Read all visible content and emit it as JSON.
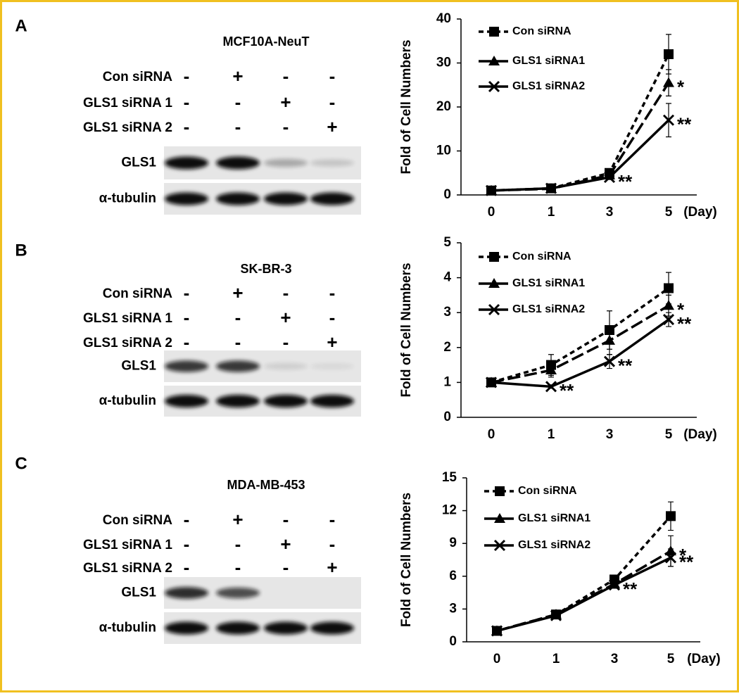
{
  "blots": [
    {
      "panel": "A",
      "title": "MCF10A-NeuT",
      "rows": [
        {
          "label": "Con siRNA",
          "marks": [
            "-",
            "+",
            "-",
            "-"
          ]
        },
        {
          "label": "GLS1 siRNA 1",
          "marks": [
            "-",
            "-",
            "+",
            "-"
          ]
        },
        {
          "label": "GLS1 siRNA 2",
          "marks": [
            "-",
            "-",
            "-",
            "+"
          ]
        }
      ],
      "bands": [
        "GLS1",
        "α-tubulin"
      ]
    },
    {
      "panel": "B",
      "title": "SK-BR-3",
      "rows": [
        {
          "label": "Con siRNA",
          "marks": [
            "-",
            "+",
            "-",
            "-"
          ]
        },
        {
          "label": "GLS1 siRNA 1",
          "marks": [
            "-",
            "-",
            "+",
            "-"
          ]
        },
        {
          "label": "GLS1 siRNA 2",
          "marks": [
            "-",
            "-",
            "-",
            "+"
          ]
        }
      ],
      "bands": [
        "GLS1",
        "α-tubulin"
      ]
    },
    {
      "panel": "C",
      "title": "MDA-MB-453",
      "rows": [
        {
          "label": "Con siRNA",
          "marks": [
            "-",
            "+",
            "-",
            "-"
          ]
        },
        {
          "label": "GLS1 siRNA 1",
          "marks": [
            "-",
            "-",
            "+",
            "-"
          ]
        },
        {
          "label": "GLS1 siRNA 2",
          "marks": [
            "-",
            "-",
            "-",
            "+"
          ]
        }
      ],
      "bands": [
        "GLS1",
        "α-tubulin"
      ]
    }
  ],
  "chart_data": [
    {
      "type": "line",
      "ylabel": "Fold of Cell Numbers",
      "xlabel": "(Day)",
      "categories": [
        "0",
        "1",
        "3",
        "5"
      ],
      "ylim": [
        0,
        40
      ],
      "yticks": [
        0,
        10,
        20,
        30,
        40
      ],
      "series": [
        {
          "name": "Con siRNA",
          "color": "#000000",
          "dash": "short",
          "marker": "square",
          "values": [
            1,
            1.5,
            5,
            32
          ],
          "errors": [
            0.3,
            0.3,
            0.8,
            4.5
          ]
        },
        {
          "name": "GLS1 siRNA1",
          "color": "#000000",
          "dash": "long",
          "marker": "triangle",
          "values": [
            1,
            1.4,
            4.5,
            25.5
          ],
          "errors": [
            0.3,
            0.3,
            0.6,
            3
          ]
        },
        {
          "name": "GLS1 siRNA2",
          "color": "#000000",
          "dash": "solid",
          "marker": "x",
          "values": [
            1,
            1.5,
            4,
            17
          ],
          "errors": [
            0.3,
            0.2,
            0.5,
            3.8
          ]
        }
      ],
      "annotations": [
        "*",
        "**",
        "**"
      ]
    },
    {
      "type": "line",
      "ylabel": "Fold of Cell Numbers",
      "xlabel": "(Day)",
      "categories": [
        "0",
        "1",
        "3",
        "5"
      ],
      "ylim": [
        0,
        5
      ],
      "yticks": [
        0,
        1,
        2,
        3,
        4,
        5
      ],
      "series": [
        {
          "name": "Con siRNA",
          "color": "#000000",
          "dash": "short",
          "marker": "square",
          "values": [
            1,
            1.5,
            2.5,
            3.7
          ],
          "errors": [
            0.1,
            0.3,
            0.55,
            0.45
          ]
        },
        {
          "name": "GLS1 siRNA1",
          "color": "#000000",
          "dash": "long",
          "marker": "triangle",
          "values": [
            1,
            1.35,
            2.2,
            3.2
          ],
          "errors": [
            0.1,
            0.2,
            0.4,
            0.3
          ]
        },
        {
          "name": "GLS1 siRNA2",
          "color": "#000000",
          "dash": "solid",
          "marker": "x",
          "values": [
            1,
            0.88,
            1.6,
            2.8
          ],
          "errors": [
            0.1,
            0.05,
            0.2,
            0.2
          ]
        }
      ],
      "annotations": [
        "*",
        "**",
        "**",
        "**"
      ]
    },
    {
      "type": "line",
      "ylabel": "Fold of Cell Numbers",
      "xlabel": "(Day)",
      "categories": [
        "0",
        "1",
        "3",
        "5"
      ],
      "ylim": [
        0,
        15
      ],
      "yticks": [
        0,
        3,
        6,
        9,
        12,
        15
      ],
      "series": [
        {
          "name": "Con siRNA",
          "color": "#000000",
          "dash": "short",
          "marker": "square",
          "values": [
            1,
            2.5,
            5.7,
            11.5
          ],
          "errors": [
            0.1,
            0.2,
            0.4,
            1.3
          ]
        },
        {
          "name": "GLS1 siRNA1",
          "color": "#000000",
          "dash": "long",
          "marker": "triangle",
          "values": [
            1,
            2.5,
            5.3,
            8.3
          ],
          "errors": [
            0.1,
            0.2,
            0.3,
            1.4
          ]
        },
        {
          "name": "GLS1 siRNA2",
          "color": "#000000",
          "dash": "solid",
          "marker": "x",
          "values": [
            1,
            2.4,
            5.2,
            7.7
          ],
          "errors": [
            0.1,
            0.2,
            0.3,
            0.8
          ]
        }
      ],
      "annotations": [
        "*",
        "**",
        "**"
      ]
    }
  ]
}
